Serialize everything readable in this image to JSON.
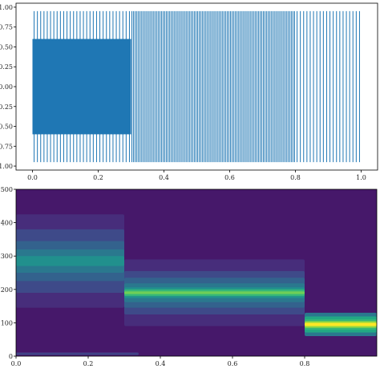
{
  "chart_data": [
    {
      "type": "line",
      "title": "",
      "xlabel": "",
      "ylabel": "",
      "xlim": [
        -0.05,
        1.05
      ],
      "ylim": [
        -1.05,
        1.05
      ],
      "x_ticks": [
        "0.0",
        "0.2",
        "0.4",
        "0.6",
        "0.8",
        "1.0"
      ],
      "y_ticks": [
        "-1.00",
        "-0.75",
        "-0.50",
        "-0.25",
        "0.00",
        "0.25",
        "0.50",
        "0.75",
        "1.00"
      ],
      "grid": false,
      "color": "#1f77b4",
      "series": [
        {
          "segments": [
            {
              "t_start": 0.0,
              "t_end": 0.3,
              "amplitude_a": 0.95,
              "frequency_a": 100,
              "amplitude_b": 0.6,
              "frequency_b": 300
            },
            {
              "t_start": 0.3,
              "t_end": 0.8,
              "amplitude_a": 0.95,
              "frequency_a": 200
            },
            {
              "t_start": 0.8,
              "t_end": 1.0,
              "amplitude_a": 0.95,
              "frequency_a": 100
            }
          ]
        }
      ]
    },
    {
      "type": "heatmap",
      "title": "",
      "xlabel": "",
      "ylabel": "",
      "xlim": [
        0,
        1.0
      ],
      "ylim": [
        0,
        500
      ],
      "x_ticks": [
        "0.0",
        "0.2",
        "0.4",
        "0.6",
        "0.8"
      ],
      "y_ticks": [
        "0",
        "100",
        "200",
        "300",
        "400",
        "500"
      ],
      "colormap": "viridis",
      "background_color": "#46186a",
      "bands": [
        {
          "x_start": 0.0,
          "x_end": 0.3,
          "center": 285,
          "levels": [
            [
              140,
              "#472d7b"
            ],
            [
              95,
              "#3e4a89"
            ],
            [
              60,
              "#33628d"
            ],
            [
              35,
              "#2a788e"
            ],
            [
              15,
              "#21908d"
            ]
          ]
        },
        {
          "x_start": 0.3,
          "x_end": 0.8,
          "center": 190,
          "levels": [
            [
              100,
              "#472d7b"
            ],
            [
              65,
              "#3e4a89"
            ],
            [
              45,
              "#33628d"
            ],
            [
              28,
              "#2a788e"
            ],
            [
              16,
              "#21908d"
            ],
            [
              10,
              "#35b779"
            ],
            [
              4,
              "#6ece58"
            ]
          ]
        },
        {
          "x_start": 0.8,
          "x_end": 1.0,
          "center": 95,
          "levels": [
            [
              35,
              "#2a788e"
            ],
            [
              24,
              "#22a884"
            ],
            [
              16,
              "#35b779"
            ],
            [
              10,
              "#90d743"
            ],
            [
              5,
              "#fde725"
            ]
          ]
        },
        {
          "x_start": 0.0,
          "x_end": 0.34,
          "center": 7,
          "levels": [
            [
              5,
              "#472d7b"
            ],
            [
              2,
              "#3e4a89"
            ]
          ]
        }
      ]
    }
  ]
}
